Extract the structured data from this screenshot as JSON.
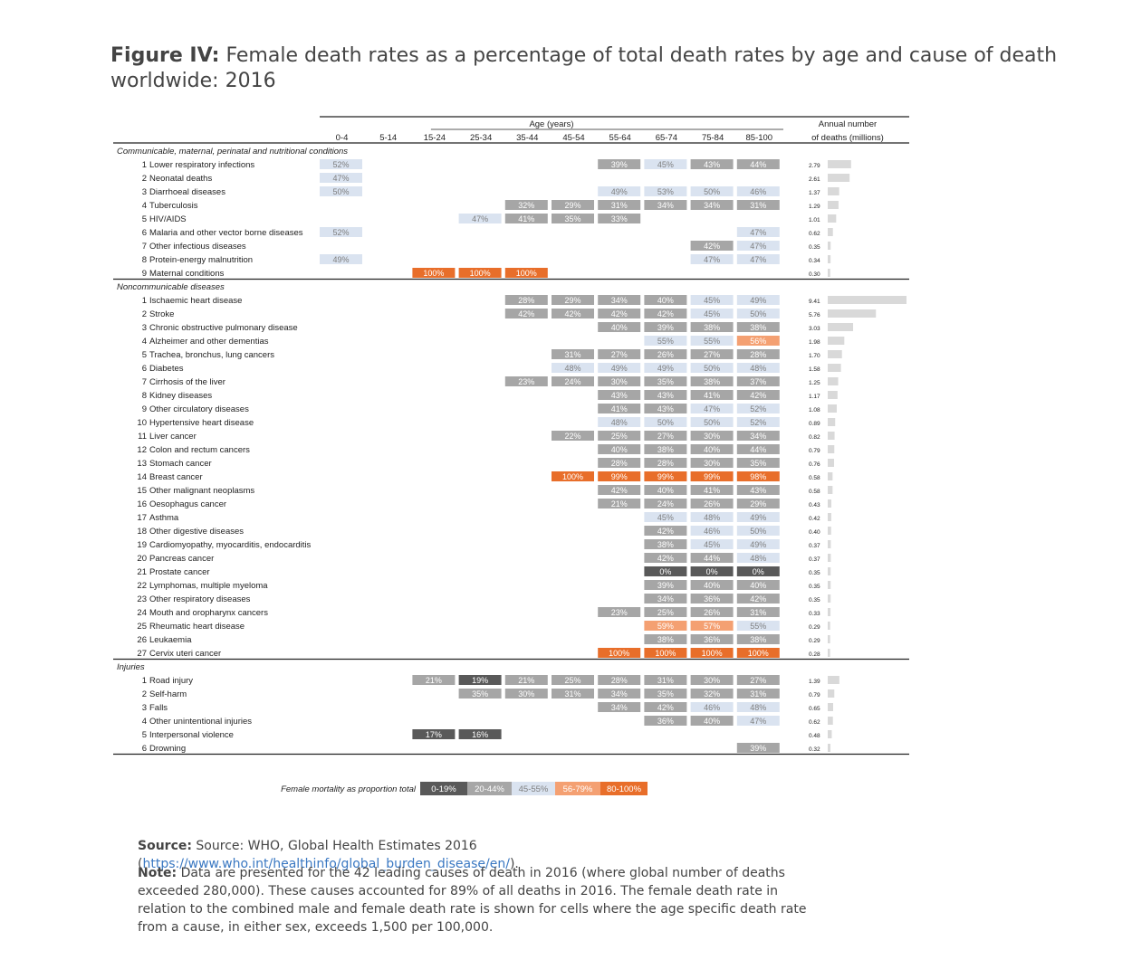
{
  "figure": {
    "label": "Figure IV:",
    "title": "Female death rates as a percentage of total death rates by age and cause of death worldwide: 2016"
  },
  "chart_data": {
    "type": "heatmap",
    "age_header": "Age (years)",
    "annual_header_1": "Annual number",
    "annual_header_2": "of deaths (millions)",
    "age_groups": [
      "0-4",
      "5-14",
      "15-24",
      "25-34",
      "35-44",
      "45-54",
      "55-64",
      "65-74",
      "75-84",
      "85-100"
    ],
    "groups": [
      {
        "name": "Communicable, maternal, perinatal and nutritional conditions",
        "rows": [
          {
            "n": "1",
            "cause": "Lower respiratory infections",
            "annual": 2.79,
            "values": [
              52,
              null,
              null,
              null,
              null,
              null,
              39,
              45,
              43,
              44
            ]
          },
          {
            "n": "2",
            "cause": "Neonatal deaths",
            "annual": 2.61,
            "values": [
              47,
              null,
              null,
              null,
              null,
              null,
              null,
              null,
              null,
              null
            ]
          },
          {
            "n": "3",
            "cause": "Diarrhoeal diseases",
            "annual": 1.37,
            "values": [
              50,
              null,
              null,
              null,
              null,
              null,
              49,
              53,
              50,
              46
            ]
          },
          {
            "n": "4",
            "cause": "Tuberculosis",
            "annual": 1.29,
            "values": [
              null,
              null,
              null,
              null,
              32,
              29,
              31,
              34,
              34,
              31
            ]
          },
          {
            "n": "5",
            "cause": "HIV/AIDS",
            "annual": 1.01,
            "values": [
              null,
              null,
              null,
              47,
              41,
              35,
              33,
              null,
              null,
              null
            ]
          },
          {
            "n": "6",
            "cause": "Malaria and other vector borne diseases",
            "annual": 0.62,
            "values": [
              52,
              null,
              null,
              null,
              null,
              null,
              null,
              null,
              null,
              47
            ]
          },
          {
            "n": "7",
            "cause": "Other infectious diseases",
            "annual": 0.35,
            "values": [
              null,
              null,
              null,
              null,
              null,
              null,
              null,
              null,
              42,
              47
            ]
          },
          {
            "n": "8",
            "cause": "Protein-energy malnutrition",
            "annual": 0.34,
            "values": [
              49,
              null,
              null,
              null,
              null,
              null,
              null,
              null,
              47,
              47
            ]
          },
          {
            "n": "9",
            "cause": "Maternal conditions",
            "annual": 0.3,
            "values": [
              null,
              null,
              100,
              100,
              100,
              null,
              null,
              null,
              null,
              null
            ]
          }
        ]
      },
      {
        "name": "Noncommunicable diseases",
        "rows": [
          {
            "n": "1",
            "cause": "Ischaemic heart disease",
            "annual": 9.41,
            "values": [
              null,
              null,
              null,
              null,
              28,
              29,
              34,
              40,
              45,
              49
            ]
          },
          {
            "n": "2",
            "cause": "Stroke",
            "annual": 5.76,
            "values": [
              null,
              null,
              null,
              null,
              42,
              42,
              42,
              42,
              45,
              50
            ]
          },
          {
            "n": "3",
            "cause": "Chronic obstructive pulmonary disease",
            "annual": 3.03,
            "values": [
              null,
              null,
              null,
              null,
              null,
              null,
              40,
              39,
              38,
              38
            ]
          },
          {
            "n": "4",
            "cause": "Alzheimer and other dementias",
            "annual": 1.98,
            "values": [
              null,
              null,
              null,
              null,
              null,
              null,
              null,
              55,
              55,
              56
            ]
          },
          {
            "n": "5",
            "cause": "Trachea, bronchus, lung cancers",
            "annual": 1.7,
            "values": [
              null,
              null,
              null,
              null,
              null,
              31,
              27,
              26,
              27,
              28
            ]
          },
          {
            "n": "6",
            "cause": "Diabetes",
            "annual": 1.58,
            "values": [
              null,
              null,
              null,
              null,
              null,
              48,
              49,
              49,
              50,
              48
            ]
          },
          {
            "n": "7",
            "cause": "Cirrhosis of the liver",
            "annual": 1.25,
            "values": [
              null,
              null,
              null,
              null,
              23,
              24,
              30,
              35,
              38,
              37
            ]
          },
          {
            "n": "8",
            "cause": "Kidney diseases",
            "annual": 1.17,
            "values": [
              null,
              null,
              null,
              null,
              null,
              null,
              43,
              43,
              41,
              42
            ]
          },
          {
            "n": "9",
            "cause": "Other circulatory diseases",
            "annual": 1.08,
            "values": [
              null,
              null,
              null,
              null,
              null,
              null,
              41,
              43,
              47,
              52
            ]
          },
          {
            "n": "10",
            "cause": "Hypertensive heart disease",
            "annual": 0.89,
            "values": [
              null,
              null,
              null,
              null,
              null,
              null,
              48,
              50,
              50,
              52
            ]
          },
          {
            "n": "11",
            "cause": "Liver cancer",
            "annual": 0.82,
            "values": [
              null,
              null,
              null,
              null,
              null,
              22,
              25,
              27,
              30,
              34
            ]
          },
          {
            "n": "12",
            "cause": "Colon and rectum cancers",
            "annual": 0.79,
            "values": [
              null,
              null,
              null,
              null,
              null,
              null,
              40,
              38,
              40,
              44
            ]
          },
          {
            "n": "13",
            "cause": "Stomach cancer",
            "annual": 0.76,
            "values": [
              null,
              null,
              null,
              null,
              null,
              null,
              28,
              28,
              30,
              35
            ]
          },
          {
            "n": "14",
            "cause": "Breast cancer",
            "annual": 0.58,
            "values": [
              null,
              null,
              null,
              null,
              null,
              100,
              99,
              99,
              99,
              98
            ]
          },
          {
            "n": "15",
            "cause": "Other malignant neoplasms",
            "annual": 0.58,
            "values": [
              null,
              null,
              null,
              null,
              null,
              null,
              42,
              40,
              41,
              43
            ]
          },
          {
            "n": "16",
            "cause": "Oesophagus cancer",
            "annual": 0.43,
            "values": [
              null,
              null,
              null,
              null,
              null,
              null,
              21,
              24,
              26,
              29
            ]
          },
          {
            "n": "17",
            "cause": "Asthma",
            "annual": 0.42,
            "values": [
              null,
              null,
              null,
              null,
              null,
              null,
              null,
              45,
              48,
              49
            ]
          },
          {
            "n": "18",
            "cause": "Other digestive diseases",
            "annual": 0.4,
            "values": [
              null,
              null,
              null,
              null,
              null,
              null,
              null,
              42,
              46,
              50
            ]
          },
          {
            "n": "19",
            "cause": "Cardiomyopathy, myocarditis, endocarditis",
            "annual": 0.37,
            "values": [
              null,
              null,
              null,
              null,
              null,
              null,
              null,
              38,
              45,
              49
            ]
          },
          {
            "n": "20",
            "cause": "Pancreas cancer",
            "annual": 0.37,
            "values": [
              null,
              null,
              null,
              null,
              null,
              null,
              null,
              42,
              44,
              48
            ]
          },
          {
            "n": "21",
            "cause": "Prostate cancer",
            "annual": 0.35,
            "values": [
              null,
              null,
              null,
              null,
              null,
              null,
              null,
              0,
              0,
              0
            ]
          },
          {
            "n": "22",
            "cause": "Lymphomas, multiple myeloma",
            "annual": 0.35,
            "values": [
              null,
              null,
              null,
              null,
              null,
              null,
              null,
              39,
              40,
              40
            ]
          },
          {
            "n": "23",
            "cause": "Other respiratory diseases",
            "annual": 0.35,
            "values": [
              null,
              null,
              null,
              null,
              null,
              null,
              null,
              34,
              36,
              42
            ]
          },
          {
            "n": "24",
            "cause": "Mouth and oropharynx cancers",
            "annual": 0.33,
            "values": [
              null,
              null,
              null,
              null,
              null,
              null,
              23,
              25,
              26,
              31
            ]
          },
          {
            "n": "25",
            "cause": "Rheumatic heart disease",
            "annual": 0.29,
            "values": [
              null,
              null,
              null,
              null,
              null,
              null,
              null,
              59,
              57,
              55
            ]
          },
          {
            "n": "26",
            "cause": "Leukaemia",
            "annual": 0.29,
            "values": [
              null,
              null,
              null,
              null,
              null,
              null,
              null,
              38,
              36,
              38
            ]
          },
          {
            "n": "27",
            "cause": "Cervix uteri cancer",
            "annual": 0.28,
            "values": [
              null,
              null,
              null,
              null,
              null,
              null,
              100,
              100,
              100,
              100
            ]
          }
        ]
      },
      {
        "name": "Injuries",
        "rows": [
          {
            "n": "1",
            "cause": "Road injury",
            "annual": 1.39,
            "values": [
              null,
              null,
              21,
              19,
              21,
              25,
              28,
              31,
              30,
              27
            ]
          },
          {
            "n": "2",
            "cause": "Self-harm",
            "annual": 0.79,
            "values": [
              null,
              null,
              null,
              35,
              30,
              31,
              34,
              35,
              32,
              31
            ]
          },
          {
            "n": "3",
            "cause": "Falls",
            "annual": 0.65,
            "values": [
              null,
              null,
              null,
              null,
              null,
              null,
              34,
              42,
              46,
              48
            ]
          },
          {
            "n": "4",
            "cause": "Other unintentional injuries",
            "annual": 0.62,
            "values": [
              null,
              null,
              null,
              null,
              null,
              null,
              null,
              36,
              40,
              47
            ]
          },
          {
            "n": "5",
            "cause": "Interpersonal violence",
            "annual": 0.48,
            "values": [
              null,
              null,
              17,
              16,
              null,
              null,
              null,
              null,
              null,
              null
            ]
          },
          {
            "n": "6",
            "cause": "Drowning",
            "annual": 0.32,
            "values": [
              null,
              null,
              null,
              null,
              null,
              null,
              null,
              null,
              null,
              39
            ]
          }
        ]
      }
    ],
    "legend": {
      "title": "Female mortality as proportion total",
      "bins": [
        {
          "label": "0-19%",
          "min": 0,
          "max": 19,
          "color": "#595959",
          "text": "#ffffff"
        },
        {
          "label": "20-44%",
          "min": 20,
          "max": 44,
          "color": "#a6a6a6",
          "text": "#ffffff"
        },
        {
          "label": "45-55%",
          "min": 45,
          "max": 55,
          "color": "#dae3f0",
          "text": "#7f7f7f"
        },
        {
          "label": "56-79%",
          "min": 56,
          "max": 79,
          "color": "#f4a072",
          "text": "#ffffff"
        },
        {
          "label": "80-100%",
          "min": 80,
          "max": 100,
          "color": "#e86e2a",
          "text": "#ffffff"
        }
      ]
    },
    "bar_color": "#d9d9d9",
    "annual_max": 9.41
  },
  "source": {
    "label": "Source:",
    "text": " Source: WHO, Global Health Estimates 2016 (",
    "link": "https://www.who.int/healthinfo/global_burden_disease/en/",
    "tail": ")."
  },
  "note": {
    "label": "Note:",
    "text": " Data are presented for the 42 leading causes of death in 2016 (where global number of deaths exceeded 280,000). These causes accounted for 89% of all deaths in 2016. The female death rate in relation to the combined male and female death rate is shown for cells where the age specific death rate from a cause, in either sex, exceeds 1,500 per 100,000."
  }
}
